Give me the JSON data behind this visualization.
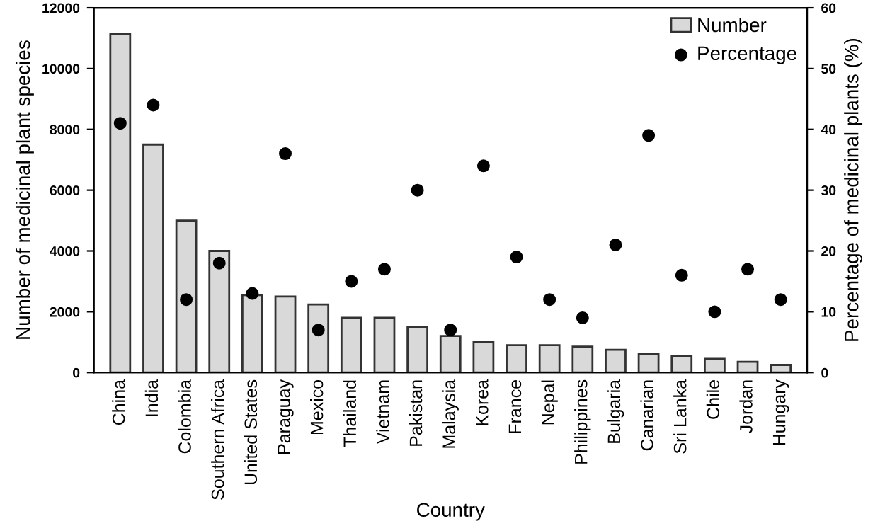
{
  "chart_data": {
    "type": "bar",
    "xlabel": "Country",
    "ylabel": "Number of medicinal plant species",
    "y2label": "Percentage of medicinal plants (%)",
    "categories": [
      "China",
      "India",
      "Colombia",
      "Southern Africa",
      "United States",
      "Paraguay",
      "Mexico",
      "Thailand",
      "Vietnam",
      "Pakistan",
      "Malaysia",
      "Korea",
      "France",
      "Nepal",
      "Philippines",
      "Bulgaria",
      "Canarian",
      "Sri Lanka",
      "Chile",
      "Jordan",
      "Hungary"
    ],
    "series": [
      {
        "name": "Number",
        "color": "#d9d9d9",
        "values": [
          11150,
          7500,
          5000,
          4000,
          2550,
          2500,
          2240,
          1800,
          1800,
          1500,
          1200,
          1000,
          900,
          900,
          850,
          750,
          600,
          550,
          450,
          350,
          250
        ]
      },
      {
        "name": "Percentage",
        "type": "scatter",
        "axis": "y2",
        "color": "#000000",
        "values": [
          41,
          44,
          12,
          18,
          13,
          36,
          7,
          15,
          17,
          30,
          7,
          34,
          19,
          12,
          9,
          21,
          39,
          16,
          10,
          17,
          12
        ]
      }
    ],
    "ylim": [
      0,
      12000
    ],
    "yticks": [
      0,
      2000,
      4000,
      6000,
      8000,
      10000,
      12000
    ],
    "y2lim": [
      0,
      60
    ],
    "y2ticks": [
      0,
      10,
      20,
      30,
      40,
      50,
      60
    ],
    "marker": "circle",
    "legend": "top right",
    "grid": false
  }
}
